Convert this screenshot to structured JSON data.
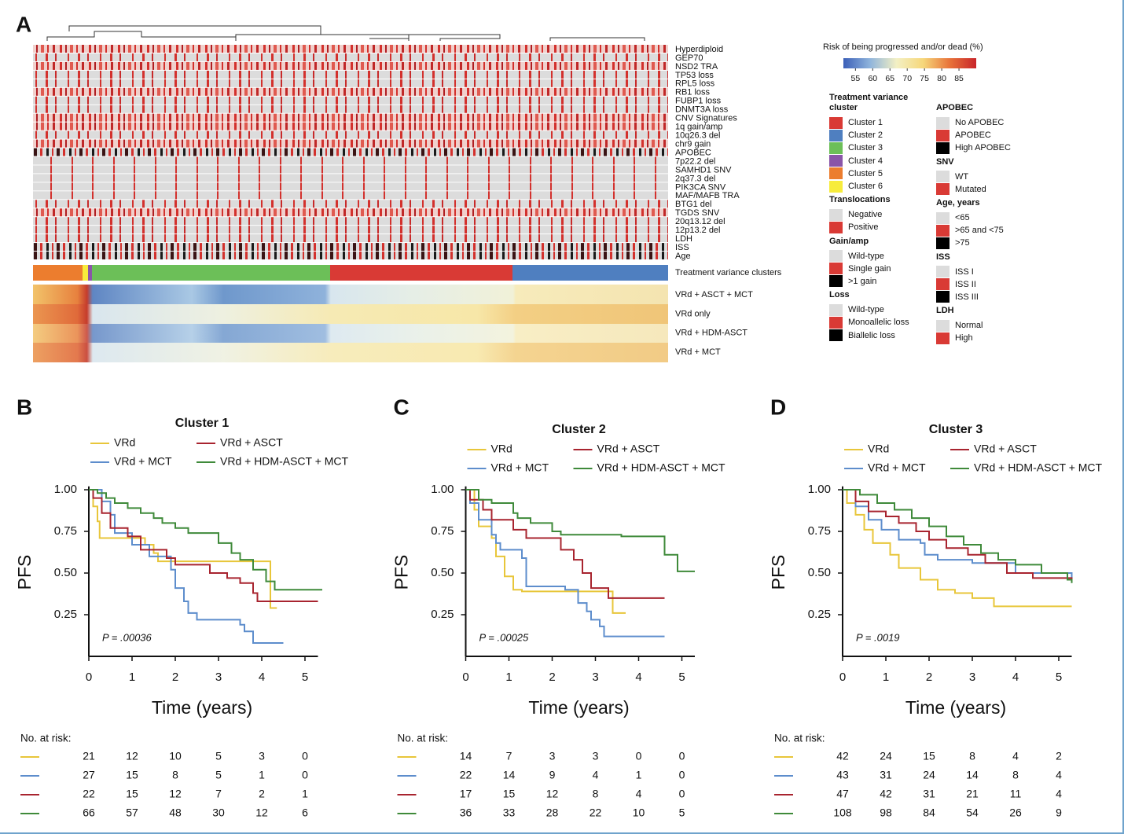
{
  "panel_a": {
    "label": "A",
    "row_labels": [
      "Hyperdiploid",
      "GEP70",
      "NSD2 TRA",
      "TP53 loss",
      "RPL5 loss",
      "RB1 loss",
      "FUBP1 loss",
      "DNMT3A loss",
      "CNV Signatures",
      "1q gain/amp",
      "10q26.3 del",
      "chr9 gain",
      "APOBEC",
      "7p22.2 del",
      "SAMHD1 SNV",
      "2q37.3 del",
      "PIK3CA SNV",
      "MAF/MAFB TRA",
      "BTG1 del",
      "TGDS SNV",
      "20q13.12 del",
      "12p13.2 del",
      "LDH",
      "ISS",
      "Age"
    ],
    "cluster_bar_label": "Treatment variance clusters",
    "treatment_rows": [
      "VRd + ASCT + MCT",
      "VRd only",
      "VRd + HDM-ASCT",
      "VRd + MCT"
    ],
    "colorbar": {
      "title": "Risk of being progressed and/or dead (%)",
      "clim": [
        51.5,
        90
      ],
      "ticks": [
        55,
        60,
        65,
        70,
        75,
        80,
        85
      ],
      "colors": [
        "#3b5fb8",
        "#8fb4dc",
        "#f3f0c4",
        "#f6d77a",
        "#e8733a",
        "#c8252a"
      ]
    },
    "legend": {
      "columns": [
        [
          {
            "title": "Treatment variance cluster",
            "items": [
              {
                "label": "Cluster 1",
                "color": "#d93a35"
              },
              {
                "label": "Cluster 2",
                "color": "#4f7fc0"
              },
              {
                "label": "Cluster 3",
                "color": "#6cbf58"
              },
              {
                "label": "Cluster 4",
                "color": "#8a55a8"
              },
              {
                "label": "Cluster 5",
                "color": "#ec7d2e"
              },
              {
                "label": "Cluster 6",
                "color": "#f7ec3c"
              }
            ]
          },
          {
            "title": "Translocations",
            "items": [
              {
                "label": "Negative",
                "color": "#dcdcdc"
              },
              {
                "label": "Positive",
                "color": "#d93a35"
              }
            ]
          },
          {
            "title": "Gain/amp",
            "items": [
              {
                "label": "Wild-type",
                "color": "#dcdcdc"
              },
              {
                "label": "Single gain",
                "color": "#d93a35"
              },
              {
                "label": ">1 gain",
                "color": "#000000"
              }
            ]
          },
          {
            "title": "Loss",
            "items": [
              {
                "label": "Wild-type",
                "color": "#dcdcdc"
              },
              {
                "label": "Monoallelic loss",
                "color": "#d93a35"
              },
              {
                "label": "Biallelic loss",
                "color": "#000000"
              }
            ]
          }
        ],
        [
          {
            "title": "APOBEC",
            "items": [
              {
                "label": "No APOBEC",
                "color": "#dcdcdc"
              },
              {
                "label": "APOBEC",
                "color": "#d93a35"
              },
              {
                "label": "High APOBEC",
                "color": "#000000"
              }
            ]
          },
          {
            "title": "SNV",
            "items": [
              {
                "label": "WT",
                "color": "#dcdcdc"
              },
              {
                "label": "Mutated",
                "color": "#d93a35"
              }
            ]
          },
          {
            "title": "Age, years",
            "items": [
              {
                "label": "<65",
                "color": "#dcdcdc"
              },
              {
                "label": ">65 and <75",
                "color": "#d93a35"
              },
              {
                "label": ">75",
                "color": "#000000"
              }
            ]
          },
          {
            "title": "ISS",
            "items": [
              {
                "label": "ISS I",
                "color": "#dcdcdc"
              },
              {
                "label": "ISS II",
                "color": "#d93a35"
              },
              {
                "label": "ISS III",
                "color": "#000000"
              }
            ]
          },
          {
            "title": "LDH",
            "items": [
              {
                "label": "Normal",
                "color": "#dcdcdc"
              },
              {
                "label": "High",
                "color": "#d93a35"
              }
            ]
          }
        ]
      ]
    }
  },
  "chart_data": [
    {
      "type": "step",
      "label": "B",
      "title": "Cluster 1",
      "x_label": "Time (years)",
      "y_label": "PFS",
      "p_value": "P = .00036",
      "xlim": [
        0,
        5.3
      ],
      "ylim": [
        0,
        1.02
      ],
      "xticks": [
        0,
        1,
        2,
        3,
        4,
        5
      ],
      "yticks": [
        0.25,
        {
          "value": 0.5,
          "label": "0.50"
        },
        0.75,
        {
          "value": 1,
          "label": "1.00"
        }
      ],
      "series": [
        {
          "name": "VRd",
          "color": "#e8c63a",
          "x": [
            0,
            0.1,
            0.2,
            0.25,
            1.3,
            1.5,
            1.6,
            4.2,
            4.35
          ],
          "values": [
            1,
            0.9,
            0.81,
            0.71,
            0.67,
            0.62,
            0.57,
            0.29,
            0.29
          ]
        },
        {
          "name": "VRd + MCT",
          "color": "#5d8dcc",
          "x": [
            0,
            0.3,
            0.5,
            0.6,
            1.0,
            1.4,
            1.9,
            2.0,
            2.2,
            2.3,
            2.5,
            2.7,
            3.5,
            3.6,
            3.8,
            4.5
          ],
          "values": [
            1,
            0.93,
            0.85,
            0.74,
            0.67,
            0.6,
            0.52,
            0.41,
            0.33,
            0.26,
            0.22,
            0.22,
            0.19,
            0.15,
            0.08,
            0.08
          ]
        },
        {
          "name": "VRd + ASCT",
          "color": "#a8242f",
          "x": [
            0,
            0.1,
            0.3,
            0.5,
            0.9,
            1.2,
            1.8,
            2.0,
            2.8,
            3.2,
            3.5,
            3.8,
            3.9,
            5.3
          ],
          "values": [
            1,
            0.95,
            0.86,
            0.77,
            0.72,
            0.64,
            0.59,
            0.55,
            0.5,
            0.47,
            0.44,
            0.38,
            0.33,
            0.33
          ]
        },
        {
          "name": "VRd + HDM-ASCT + MCT",
          "color": "#3f8a3a",
          "x": [
            0,
            0.2,
            0.4,
            0.6,
            0.9,
            1.2,
            1.5,
            1.7,
            2.0,
            2.3,
            2.6,
            3.0,
            3.3,
            3.5,
            3.8,
            4.1,
            4.3,
            5.4
          ],
          "values": [
            1,
            0.98,
            0.95,
            0.92,
            0.89,
            0.86,
            0.83,
            0.8,
            0.77,
            0.74,
            0.74,
            0.68,
            0.62,
            0.58,
            0.52,
            0.45,
            0.4,
            0.4
          ]
        }
      ],
      "risk_table": {
        "title": "No. at risk:",
        "rows": [
          [
            21,
            12,
            10,
            5,
            3,
            0
          ],
          [
            27,
            15,
            8,
            5,
            1,
            0
          ],
          [
            22,
            15,
            12,
            7,
            2,
            1
          ],
          [
            66,
            57,
            48,
            30,
            12,
            6
          ]
        ]
      }
    },
    {
      "type": "step",
      "label": "C",
      "title": "Cluster 2",
      "x_label": "Time (years)",
      "y_label": "PFS",
      "p_value": "P = .00025",
      "xlim": [
        0,
        5.3
      ],
      "ylim": [
        0,
        1.02
      ],
      "xticks": [
        0,
        1,
        2,
        3,
        4,
        5
      ],
      "yticks": [
        0.25,
        {
          "value": 0.5,
          "label": "0.50"
        },
        0.75,
        {
          "value": 1,
          "label": "1.00"
        }
      ],
      "series": [
        {
          "name": "VRd",
          "color": "#e8c63a",
          "x": [
            0,
            0.2,
            0.3,
            0.6,
            0.7,
            0.9,
            1.1,
            1.3,
            1.8,
            3.4,
            3.7
          ],
          "values": [
            1,
            0.88,
            0.78,
            0.71,
            0.6,
            0.48,
            0.4,
            0.39,
            0.39,
            0.26,
            0.26
          ]
        },
        {
          "name": "VRd + MCT",
          "color": "#5d8dcc",
          "x": [
            0,
            0.1,
            0.3,
            0.6,
            0.7,
            0.8,
            1.3,
            1.4,
            2.3,
            2.6,
            2.8,
            2.9,
            3.1,
            3.2,
            4.6
          ],
          "values": [
            1,
            0.92,
            0.82,
            0.73,
            0.68,
            0.64,
            0.59,
            0.42,
            0.4,
            0.32,
            0.27,
            0.22,
            0.18,
            0.12,
            0.12
          ]
        },
        {
          "name": "VRd + ASCT",
          "color": "#a8242f",
          "x": [
            0,
            0.1,
            0.4,
            0.6,
            1.0,
            1.1,
            1.4,
            2.2,
            2.5,
            2.7,
            2.9,
            3.3,
            4.6
          ],
          "values": [
            1,
            0.94,
            0.88,
            0.82,
            0.82,
            0.76,
            0.71,
            0.64,
            0.58,
            0.5,
            0.41,
            0.35,
            0.35
          ]
        },
        {
          "name": "VRd + HDM-ASCT + MCT",
          "color": "#3f8a3a",
          "x": [
            0,
            0.3,
            0.6,
            1.1,
            1.2,
            1.5,
            2.0,
            2.2,
            3.6,
            4.6,
            4.9,
            5.3
          ],
          "values": [
            1,
            0.94,
            0.92,
            0.86,
            0.83,
            0.8,
            0.75,
            0.73,
            0.72,
            0.61,
            0.51,
            0.51
          ]
        }
      ],
      "risk_table": {
        "title": "No. at risk:",
        "rows": [
          [
            14,
            7,
            3,
            3,
            0,
            0
          ],
          [
            22,
            14,
            9,
            4,
            1,
            0
          ],
          [
            17,
            15,
            12,
            8,
            4,
            0
          ],
          [
            36,
            33,
            28,
            22,
            10,
            5
          ]
        ]
      }
    },
    {
      "type": "step",
      "label": "D",
      "title": "Cluster 3",
      "x_label": "Time (years)",
      "y_label": "PFS",
      "p_value": "P = .0019",
      "xlim": [
        0,
        5.3
      ],
      "ylim": [
        0,
        1.02
      ],
      "xticks": [
        0,
        1,
        2,
        3,
        4,
        5
      ],
      "yticks": [
        0.25,
        {
          "value": 0.5,
          "label": "0.50"
        },
        0.75,
        {
          "value": 1,
          "label": "1.00"
        }
      ],
      "series": [
        {
          "name": "VRd",
          "color": "#e8c63a",
          "x": [
            0,
            0.1,
            0.3,
            0.5,
            0.7,
            1.0,
            1.1,
            1.3,
            1.8,
            2.2,
            2.6,
            3.0,
            3.5,
            5.3
          ],
          "values": [
            1,
            0.92,
            0.85,
            0.76,
            0.68,
            0.68,
            0.61,
            0.53,
            0.46,
            0.4,
            0.38,
            0.35,
            0.3,
            0.3
          ]
        },
        {
          "name": "VRd + MCT",
          "color": "#5d8dcc",
          "x": [
            0,
            0.3,
            0.6,
            0.9,
            1.3,
            1.8,
            1.9,
            2.2,
            3.0,
            4.0,
            5.3
          ],
          "values": [
            1,
            0.9,
            0.82,
            0.76,
            0.7,
            0.68,
            0.61,
            0.58,
            0.56,
            0.5,
            0.47
          ]
        },
        {
          "name": "VRd + ASCT",
          "color": "#a8242f",
          "x": [
            0,
            0.3,
            0.6,
            1.0,
            1.3,
            1.7,
            2.0,
            2.4,
            2.9,
            3.3,
            3.8,
            4.4,
            5.3
          ],
          "values": [
            1,
            0.93,
            0.87,
            0.84,
            0.8,
            0.75,
            0.7,
            0.65,
            0.61,
            0.56,
            0.5,
            0.47,
            0.45
          ]
        },
        {
          "name": "VRd + HDM-ASCT + MCT",
          "color": "#3f8a3a",
          "x": [
            0,
            0.4,
            0.8,
            1.2,
            1.6,
            2.0,
            2.4,
            2.8,
            3.2,
            3.6,
            4.0,
            4.6,
            5.2,
            5.3
          ],
          "values": [
            1,
            0.97,
            0.92,
            0.88,
            0.83,
            0.78,
            0.72,
            0.67,
            0.62,
            0.58,
            0.55,
            0.5,
            0.46,
            0.44
          ]
        }
      ],
      "risk_table": {
        "title": "No. at risk:",
        "rows": [
          [
            42,
            24,
            15,
            8,
            4,
            2
          ],
          [
            43,
            31,
            24,
            14,
            8,
            4
          ],
          [
            47,
            42,
            31,
            21,
            11,
            4
          ],
          [
            108,
            98,
            84,
            54,
            26,
            9
          ]
        ]
      }
    }
  ]
}
